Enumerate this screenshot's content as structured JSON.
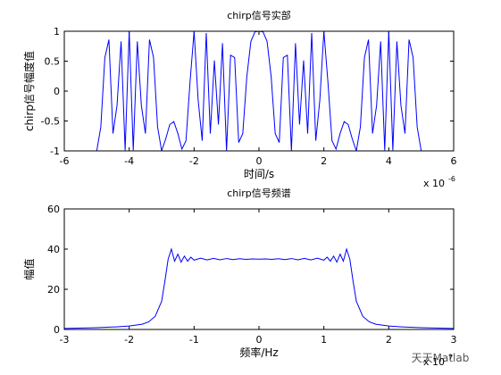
{
  "chart_data": [
    {
      "type": "line",
      "title": "chirp信号实部",
      "xlabel": "时间/s",
      "ylabel": "chirp信号幅度值",
      "x_exponent_base": "x 10",
      "x_exponent": "-6",
      "color": "#0000ff",
      "xlim": [
        -6,
        6
      ],
      "xticks": [
        -6,
        -4,
        -2,
        0,
        2,
        4,
        6
      ],
      "ylim": [
        -1,
        1
      ],
      "yticks": [
        -1,
        -0.5,
        0,
        0.5,
        1
      ],
      "x": [
        -5,
        -4.875,
        -4.75,
        -4.625,
        -4.5,
        -4.375,
        -4.25,
        -4.125,
        -4,
        -3.875,
        -3.75,
        -3.625,
        -3.5,
        -3.375,
        -3.25,
        -3.125,
        -3,
        -2.875,
        -2.75,
        -2.625,
        -2.5,
        -2.375,
        -2.25,
        -2.125,
        -2,
        -1.875,
        -1.75,
        -1.625,
        -1.5,
        -1.375,
        -1.25,
        -1.125,
        -1,
        -0.875,
        -0.75,
        -0.625,
        -0.5,
        -0.375,
        -0.25,
        -0.125,
        0,
        0.125,
        0.25,
        0.375,
        0.5,
        0.625,
        0.75,
        0.875,
        1,
        1.125,
        1.25,
        1.375,
        1.5,
        1.625,
        1.75,
        1.875,
        2,
        2.125,
        2.25,
        2.375,
        2.5,
        2.625,
        2.75,
        2.875,
        3,
        3.125,
        3.25,
        3.375,
        3.5,
        3.625,
        3.75,
        3.875,
        4,
        4.125,
        4.25,
        4.375,
        4.5,
        4.625,
        4.75,
        4.875,
        5
      ],
      "values": [
        -1,
        -0.6,
        0.56,
        0.86,
        -0.71,
        -0.24,
        0.83,
        -0.99,
        1,
        -0.99,
        0.83,
        -0.24,
        -0.71,
        0.86,
        0.56,
        -0.6,
        -1,
        -0.8,
        -0.56,
        -0.51,
        -0.71,
        -0.97,
        -0.83,
        0.15,
        1,
        -0.15,
        -0.83,
        0.97,
        -0.71,
        0.51,
        -0.56,
        0.8,
        -1,
        0.6,
        0.56,
        -0.86,
        -0.71,
        0.24,
        0.83,
        0.99,
        1,
        0.99,
        0.83,
        0.24,
        -0.71,
        -0.86,
        0.56,
        0.6,
        -1,
        0.8,
        -0.56,
        0.51,
        -0.71,
        0.97,
        -0.83,
        -0.15,
        1,
        0.15,
        -0.83,
        -0.97,
        -0.71,
        -0.51,
        -0.56,
        -0.8,
        -1,
        -0.6,
        0.56,
        0.86,
        -0.71,
        -0.24,
        0.83,
        -0.99,
        1,
        -0.99,
        0.83,
        -0.24,
        -0.71,
        0.86,
        0.56,
        -0.6,
        -1
      ]
    },
    {
      "type": "line",
      "title": "chirp信号频谱",
      "xlabel": "频率/Hz",
      "ylabel": "幅值",
      "x_exponent_base": "x 10",
      "x_exponent": "7",
      "color": "#0000ff",
      "xlim": [
        -3,
        3
      ],
      "xticks": [
        -3,
        -2,
        -1,
        0,
        1,
        2,
        3
      ],
      "ylim": [
        0,
        60
      ],
      "yticks": [
        0,
        20,
        40,
        60
      ],
      "x": [
        -3,
        -2.5,
        -2.2,
        -2,
        -1.8,
        -1.7,
        -1.6,
        -1.5,
        -1.45,
        -1.4,
        -1.35,
        -1.3,
        -1.25,
        -1.2,
        -1.15,
        -1.1,
        -1.05,
        -1,
        -0.9,
        -0.8,
        -0.7,
        -0.6,
        -0.5,
        -0.4,
        -0.3,
        -0.2,
        -0.1,
        0,
        0.1,
        0.2,
        0.3,
        0.4,
        0.5,
        0.6,
        0.7,
        0.8,
        0.9,
        1,
        1.05,
        1.1,
        1.15,
        1.2,
        1.25,
        1.3,
        1.35,
        1.4,
        1.45,
        1.5,
        1.6,
        1.7,
        1.8,
        2,
        2.2,
        2.5,
        3
      ],
      "values": [
        0.5,
        0.9,
        1.3,
        1.7,
        2.6,
        3.8,
        6.5,
        14,
        24,
        35,
        40,
        34,
        37.5,
        33.5,
        36.5,
        34,
        36,
        34.5,
        35.5,
        34.6,
        35.4,
        34.7,
        35.3,
        34.8,
        35.2,
        34.9,
        35.1,
        35,
        35.1,
        34.9,
        35.2,
        34.8,
        35.3,
        34.7,
        35.4,
        34.6,
        35.5,
        34.5,
        36,
        34,
        36.5,
        33.5,
        37.5,
        34,
        40,
        35,
        24,
        14,
        6.5,
        3.8,
        2.6,
        1.7,
        1.3,
        0.9,
        0.5
      ]
    }
  ],
  "watermark": "天天Matlab"
}
